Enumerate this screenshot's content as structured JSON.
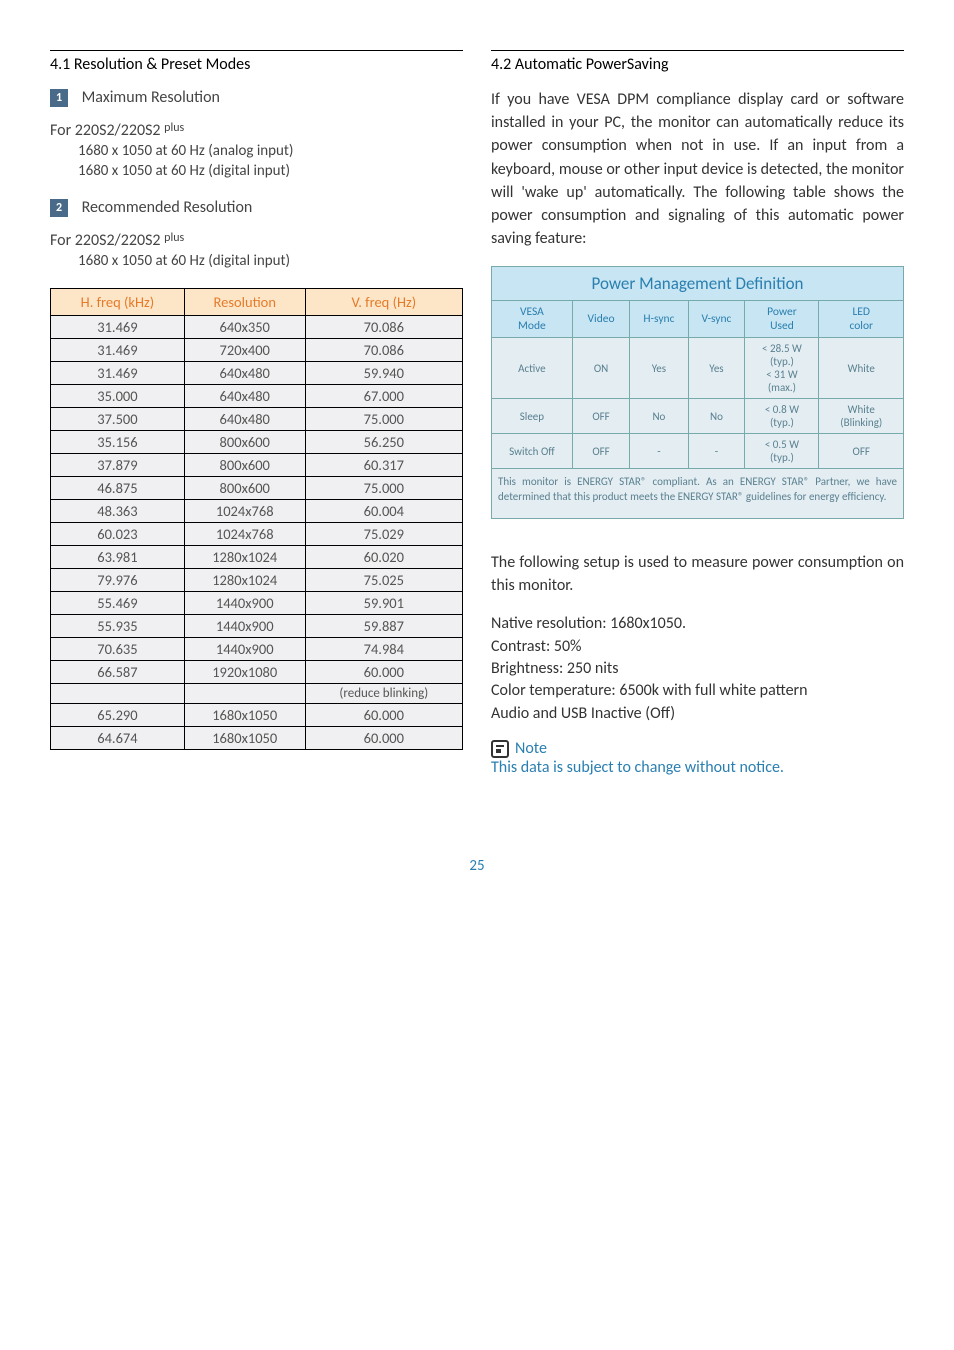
{
  "left": {
    "section_title": "4.1 Resolution & Preset Modes",
    "max_label": "Maximum Resolution",
    "rec_label": "Recommended Resolution",
    "model_prefix": "For 220S2/220S2 ",
    "model_sup": "plus",
    "res_analog": "1680 x 1050 at 60 Hz (analog input)",
    "res_digital": "1680 x 1050 at 60 Hz (digital input)",
    "table": {
      "headers": [
        "H. freq (kHz)",
        "Resolution",
        "V. freq (Hz)"
      ],
      "rows": [
        [
          "31.469",
          "640x350",
          "70.086"
        ],
        [
          "31.469",
          "720x400",
          "70.086"
        ],
        [
          "31.469",
          "640x480",
          "59.940"
        ],
        [
          "35.000",
          "640x480",
          "67.000"
        ],
        [
          "37.500",
          "640x480",
          "75.000"
        ],
        [
          "35.156",
          "800x600",
          "56.250"
        ],
        [
          "37.879",
          "800x600",
          "60.317"
        ],
        [
          "46.875",
          "800x600",
          "75.000"
        ],
        [
          "48.363",
          "1024x768",
          "60.004"
        ],
        [
          "60.023",
          "1024x768",
          "75.029"
        ],
        [
          "63.981",
          "1280x1024",
          "60.020"
        ],
        [
          "79.976",
          "1280x1024",
          "75.025"
        ],
        [
          "55.469",
          "1440x900",
          "59.901"
        ],
        [
          "55.935",
          "1440x900",
          "59.887"
        ],
        [
          "70.635",
          "1440x900",
          "74.984"
        ],
        [
          "66.587",
          "1920x1080",
          "60.000"
        ],
        [
          "",
          "",
          "(reduce blinking)"
        ],
        [
          "65.290",
          "1680x1050",
          "60.000"
        ],
        [
          "64.674",
          "1680x1050",
          "60.000"
        ]
      ]
    }
  },
  "right": {
    "section_title": "4.2 Automatic PowerSaving",
    "intro": "If you have VESA DPM compliance display card or software installed in your PC, the monitor can automatically reduce its power consumption when not in use. If an input from a keyboard, mouse or other input device is detected, the monitor will 'wake up' automatically. The following table shows the power consumption and signaling of this automatic power saving feature:",
    "pm": {
      "title": "Power Management Definition",
      "headers": [
        "VESA Mode",
        "Video",
        "H-sync",
        "V-sync",
        "Power Used",
        "LED color"
      ],
      "rows": [
        [
          "Active",
          "ON",
          "Yes",
          "Yes",
          "< 28.5 W (typ.) < 31 W (max.)",
          "White"
        ],
        [
          "Sleep",
          "OFF",
          "No",
          "No",
          "< 0.8 W (typ.)",
          "White (Blinking)"
        ],
        [
          "Switch Off",
          "OFF",
          "-",
          "-",
          "< 0.5 W (typ.)",
          "OFF"
        ]
      ],
      "footnote": "This monitor is ENERGY STAR® compliant. As an ENERGY STAR® Partner, we have determined that this product meets the ENERGY STAR® guidelines for energy efficiency."
    },
    "measure_intro": "The following setup is used to measure power consumption on this monitor.",
    "measure_lines": [
      "Native resolution: 1680x1050.",
      "Contrast: 50%",
      "Brightness: 250 nits",
      "Color temperature: 6500k with full white pattern",
      "Audio and USB Inactive (Off)"
    ],
    "note_label": "Note",
    "note_body": "This data is subject to change without notice."
  },
  "page_number": "25",
  "badge1": "1",
  "badge2": "2"
}
